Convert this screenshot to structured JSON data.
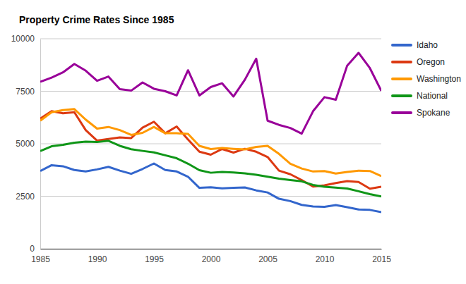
{
  "chart_data": {
    "type": "line",
    "title": "Property Crime Rates Since 1985",
    "x": [
      1985,
      1986,
      1987,
      1988,
      1989,
      1990,
      1991,
      1992,
      1993,
      1994,
      1995,
      1996,
      1997,
      1998,
      1999,
      2000,
      2001,
      2002,
      2003,
      2004,
      2005,
      2006,
      2007,
      2008,
      2009,
      2010,
      2011,
      2012,
      2013,
      2014,
      2015
    ],
    "xlim": [
      1985,
      2015
    ],
    "xticks": [
      1985,
      1990,
      1995,
      2000,
      2005,
      2010,
      2015
    ],
    "ylim": [
      0,
      10000
    ],
    "yticks": [
      0,
      2500,
      5000,
      7500,
      10000
    ],
    "grid": true,
    "legend": "right",
    "series": [
      {
        "name": "Idaho",
        "color": "#3366cc",
        "values": [
          3700,
          3980,
          3930,
          3750,
          3680,
          3780,
          3900,
          3720,
          3570,
          3800,
          4060,
          3750,
          3680,
          3430,
          2900,
          2930,
          2880,
          2900,
          2920,
          2780,
          2680,
          2380,
          2270,
          2090,
          2010,
          2000,
          2080,
          1980,
          1870,
          1850,
          1740
        ]
      },
      {
        "name": "Oregon",
        "color": "#dc3912",
        "values": [
          6200,
          6550,
          6450,
          6500,
          5650,
          5150,
          5230,
          5300,
          5270,
          5770,
          6050,
          5500,
          5820,
          5200,
          4620,
          4480,
          4750,
          4580,
          4760,
          4620,
          4370,
          3720,
          3550,
          3270,
          2960,
          3020,
          3130,
          3220,
          3180,
          2860,
          2950
        ]
      },
      {
        "name": "Washington",
        "color": "#ff9900",
        "values": [
          6100,
          6500,
          6600,
          6650,
          6150,
          5720,
          5800,
          5650,
          5420,
          5520,
          5800,
          5500,
          5500,
          5470,
          4900,
          4750,
          4800,
          4760,
          4730,
          4850,
          4900,
          4520,
          4050,
          3820,
          3680,
          3700,
          3580,
          3660,
          3720,
          3700,
          3460
        ]
      },
      {
        "name": "National",
        "color": "#109618",
        "values": [
          4650,
          4880,
          4950,
          5050,
          5100,
          5080,
          5140,
          4900,
          4740,
          4660,
          4590,
          4450,
          4310,
          4050,
          3740,
          3620,
          3660,
          3630,
          3590,
          3520,
          3430,
          3340,
          3270,
          3210,
          3040,
          2950,
          2910,
          2870,
          2740,
          2600,
          2490
        ]
      },
      {
        "name": "Spokane",
        "color": "#990099",
        "values": [
          7950,
          8150,
          8400,
          8800,
          8480,
          8000,
          8200,
          7600,
          7530,
          7920,
          7620,
          7500,
          7300,
          8500,
          7300,
          7700,
          7880,
          7250,
          8050,
          9050,
          6100,
          5900,
          5750,
          5480,
          6550,
          7220,
          7100,
          8720,
          9330,
          8600,
          7520
        ]
      }
    ]
  }
}
